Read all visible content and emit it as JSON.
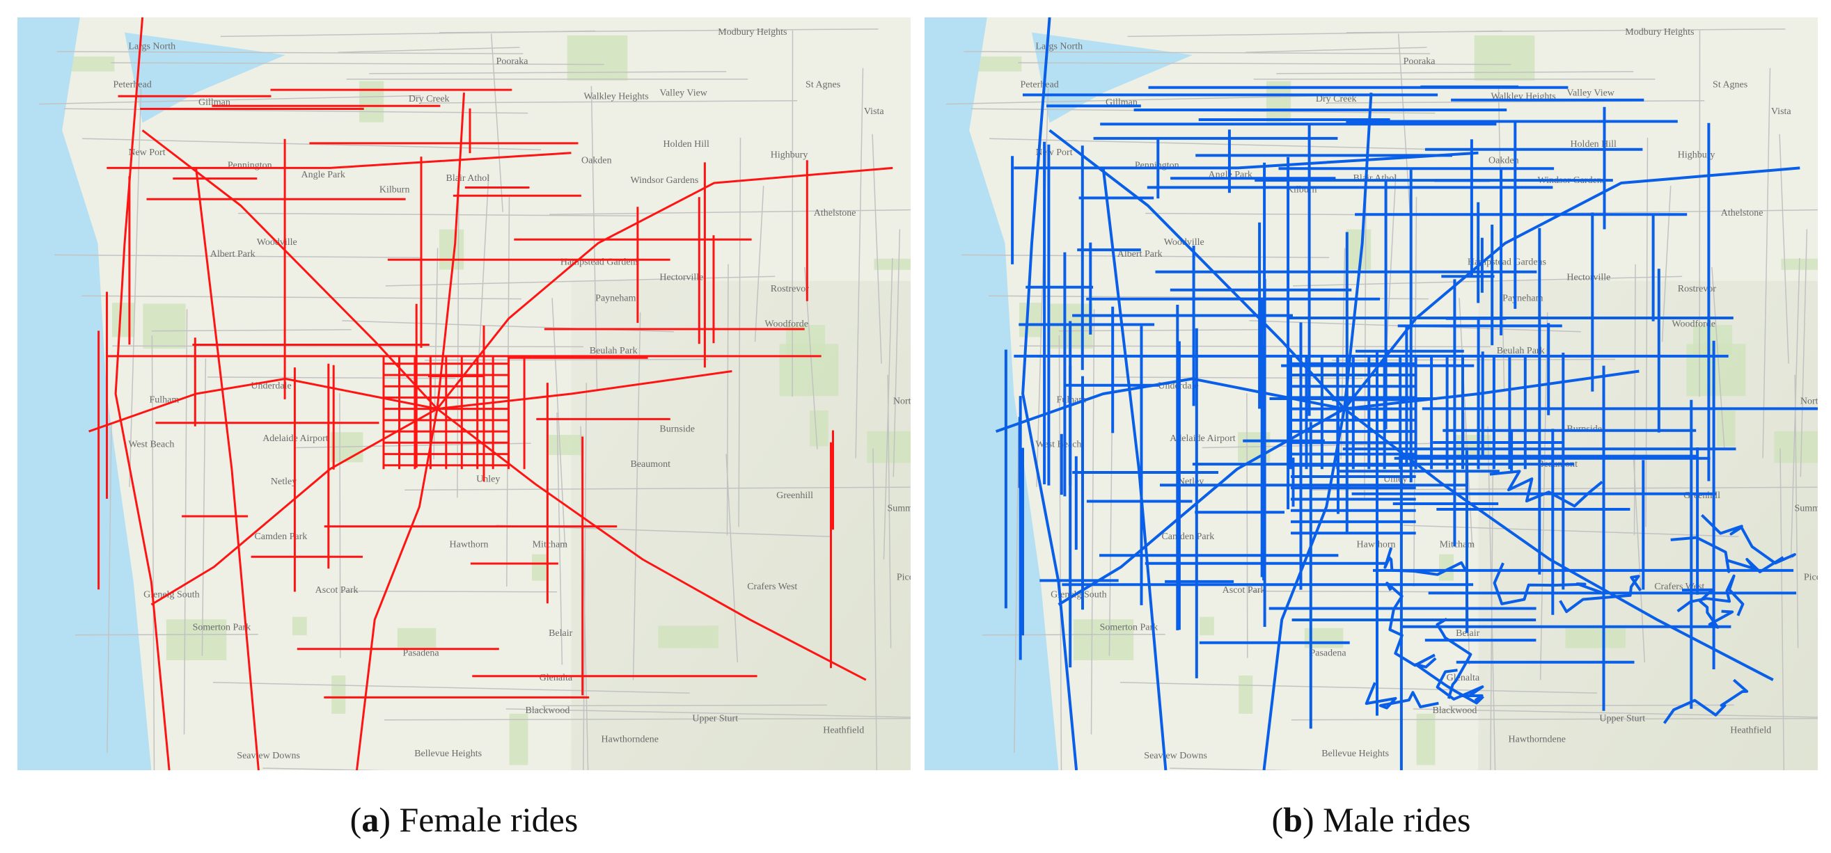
{
  "basemap": {
    "places": [
      "Largs North",
      "Peterhead",
      "Gillman",
      "Dry Creek",
      "Pooraka",
      "Walkley Heights",
      "Valley View",
      "St Agnes",
      "Modbury Heights",
      "New Port",
      "Pennington",
      "Angle Park",
      "Kilburn",
      "Blair Athol",
      "Oakden",
      "Holden Hill",
      "Windsor Gardens",
      "Highbury",
      "Vista",
      "Athelstone",
      "Albert Park",
      "Woodville",
      "Hampstead Gardens",
      "Hectorville",
      "Payneham",
      "Rostrevor",
      "Woodforde",
      "Beulah Park",
      "Underdale",
      "Fulham",
      "West Beach",
      "Adelaide Airport",
      "Netley",
      "Unley",
      "Burnside",
      "Beaumont",
      "Norton Summit",
      "Camden Park",
      "Hawthorn",
      "Mitcham",
      "Greenhill",
      "Summertown",
      "Glenelg South",
      "Ascot Park",
      "Somerton Park",
      "Crafers West",
      "Piccadilly",
      "Belair",
      "Pasadena",
      "Glenalta",
      "Blackwood",
      "Hawthorndene",
      "Upper Sturt",
      "Heathfield",
      "Bellevue Heights",
      "Seaview Downs"
    ]
  },
  "panels": [
    {
      "caption": [
        "(",
        "a",
        ") Female rides"
      ],
      "route_color": "#ff1414"
    },
    {
      "caption": [
        "(",
        "b",
        ") Male rides"
      ],
      "route_color": "#0a5fe8"
    }
  ]
}
